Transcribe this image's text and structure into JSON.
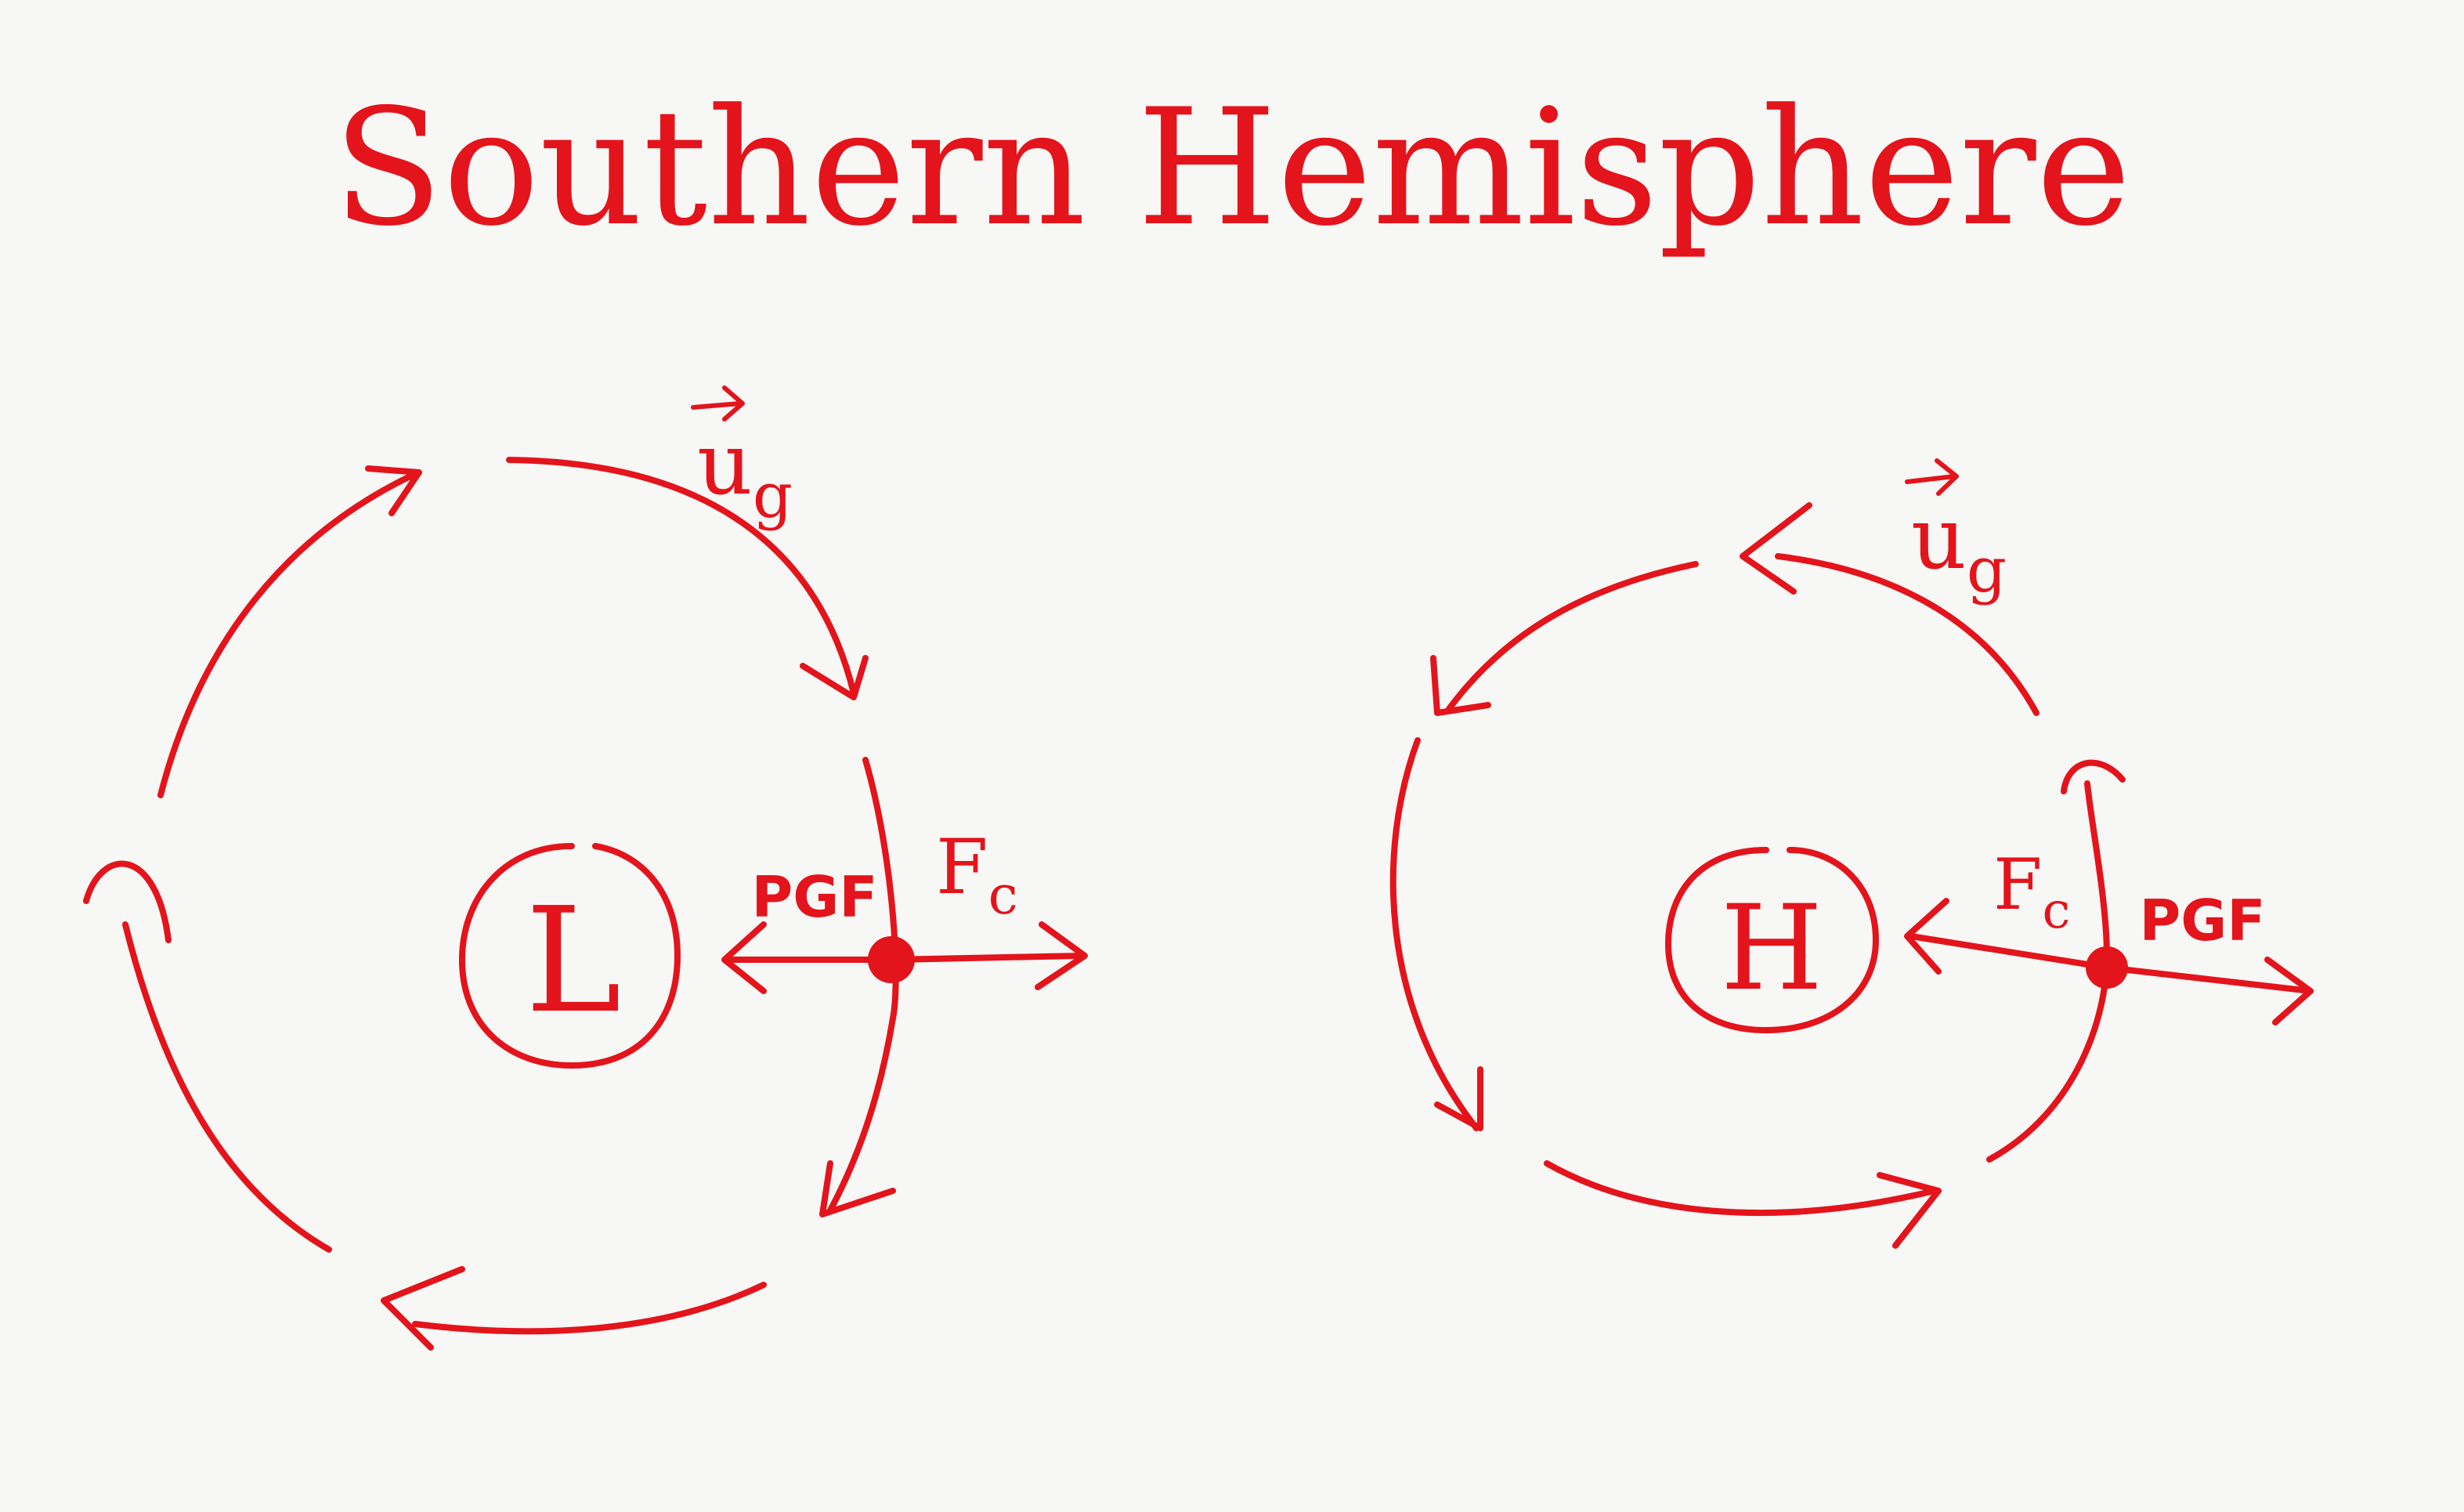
{
  "title": "Southern Hemisphere",
  "colors": {
    "ink": "#e3141b",
    "paper": "#f7f7f5"
  },
  "systems": [
    {
      "center_label": "L",
      "wind_label_base": "u",
      "wind_label_sub": "g",
      "pgf_label": "PGF",
      "coriolis_label_base": "F",
      "coriolis_label_sub": "c",
      "rotation": "clockwise"
    },
    {
      "center_label": "H",
      "wind_label_base": "u",
      "wind_label_sub": "g",
      "pgf_label": "PGF",
      "coriolis_label_base": "F",
      "coriolis_label_sub": "c",
      "rotation": "counterclockwise"
    }
  ]
}
